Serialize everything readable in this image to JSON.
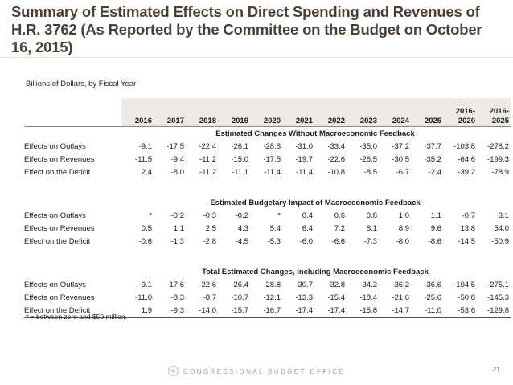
{
  "title": "Summary of Estimated Effects on Direct  Spending and Revenues of H.R. 3762 (As Reported by the Committee on the Budget on October 16, 2015)",
  "units_label": "Billions of Dollars, by Fiscal Year",
  "columns": [
    "2016",
    "2017",
    "2018",
    "2019",
    "2020",
    "2021",
    "2022",
    "2023",
    "2024",
    "2025",
    "2016-\n2020",
    "2016-\n2025"
  ],
  "sections": [
    {
      "title": "Estimated Changes Without Macroeconomic Feedback",
      "rows": [
        {
          "label": "Effects on Outlays",
          "values": [
            "-9.1",
            "-17.5",
            "-22.4",
            "-26.1",
            "-28.8",
            "-31.0",
            "-33.4",
            "-35.0",
            "-37.2",
            "-37.7",
            "-103.8",
            "-278.2"
          ]
        },
        {
          "label": "Effects on Revenues",
          "values": [
            "-11.5",
            "-9.4",
            "-11.2",
            "-15.0",
            "-17.5",
            "-19.7",
            "-22.6",
            "-26.5",
            "-30.5",
            "-35.2",
            "-64.6",
            "-199.3"
          ]
        },
        {
          "label": "Effect on the Deficit",
          "values": [
            "2.4",
            "-8.0",
            "-11.2",
            "-11.1",
            "-11.4",
            "-11.4",
            "-10.8",
            "-8.5",
            "-6.7",
            "-2.4",
            "-39.2",
            "-78.9"
          ]
        }
      ]
    },
    {
      "title": "Estimated Budgetary Impact of Macroeconomic Feedback",
      "rows": [
        {
          "label": "Effects on Outlays",
          "values": [
            "*",
            "-0.2",
            "-0.3",
            "-0.2",
            "*",
            "0.4",
            "0.6",
            "0.8",
            "1.0",
            "1.1",
            "-0.7",
            "3.1"
          ]
        },
        {
          "label": "Effects on Revenues",
          "values": [
            "0.5",
            "1.1",
            "2.5",
            "4.3",
            "5.4",
            "6.4",
            "7.2",
            "8.1",
            "8.9",
            "9.6",
            "13.8",
            "54.0"
          ]
        },
        {
          "label": "Effect on the Deficit",
          "values": [
            "-0.6",
            "-1.3",
            "-2.8",
            "-4.5",
            "-5.3",
            "-6.0",
            "-6.6",
            "-7.3",
            "-8.0",
            "-8.6",
            "-14.5",
            "-50.9"
          ]
        }
      ]
    },
    {
      "title": "Total Estimated Changes, Including Macroeconomic Feedback",
      "rows": [
        {
          "label": "Effects on Outlays",
          "values": [
            "-9.1",
            "-17.6",
            "-22.6",
            "-26.4",
            "-28.8",
            "-30.7",
            "-32.8",
            "-34.2",
            "-36.2",
            "-36.6",
            "-104.5",
            "-275.1"
          ]
        },
        {
          "label": "Effects on Revenues",
          "values": [
            "-11.0",
            "-8.3",
            "-8.7",
            "-10.7",
            "-12.1",
            "-13.3",
            "-15.4",
            "-18.4",
            "-21.6",
            "-25.6",
            "-50.8",
            "-145.3"
          ]
        },
        {
          "label": "Effect on the Deficit",
          "values": [
            "1.9",
            "-9.3",
            "-14.0",
            "-15.7",
            "-16.7",
            "-17.4",
            "-17.4",
            "-15.8",
            "-14.7",
            "-11.0",
            "-53.6",
            "-129.8"
          ]
        }
      ]
    }
  ],
  "footnote": "* = between zero and $50 million.",
  "footer_org": "CONGRESSIONAL BUDGET OFFICE",
  "page_number": "21",
  "colors": {
    "title": "#4a3f35",
    "header_bg": "#eeebe7",
    "footer": "#a39b91"
  }
}
